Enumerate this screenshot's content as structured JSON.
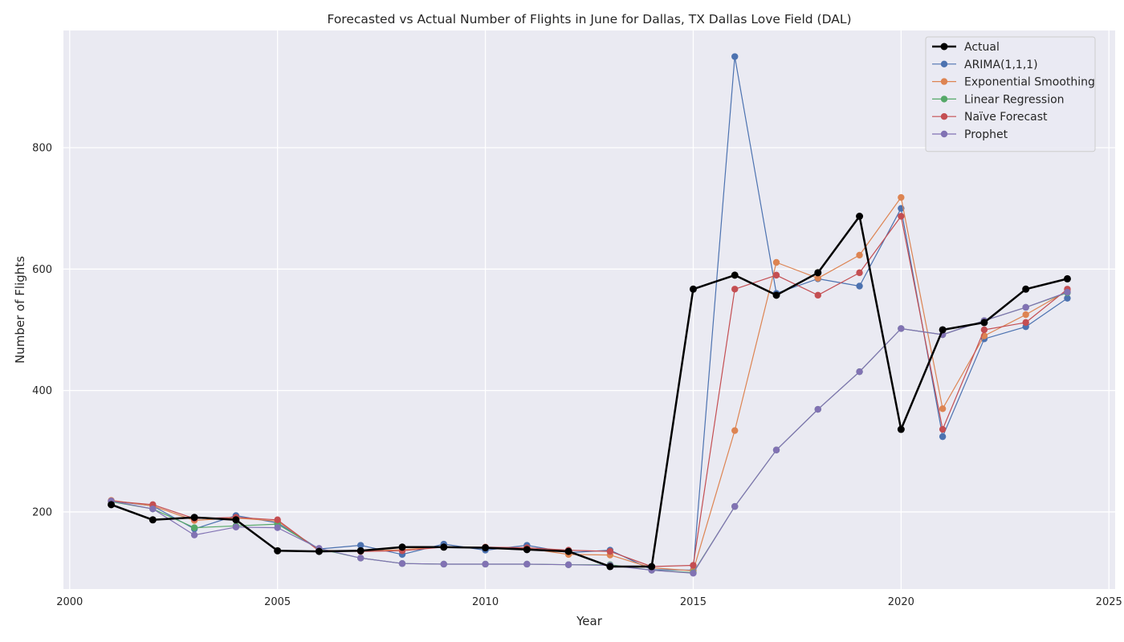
{
  "chart_data": {
    "type": "line",
    "title": "Forecasted vs Actual Number of Flights in June for Dallas, TX Dallas Love Field (DAL)",
    "xlabel": "Year",
    "ylabel": "Number of Flights",
    "xlim": [
      1999.85,
      2025.15
    ],
    "ylim": [
      73,
      993
    ],
    "x_ticks": [
      2000,
      2005,
      2010,
      2015,
      2020,
      2025
    ],
    "y_ticks": [
      200,
      400,
      600,
      800
    ],
    "grid": true,
    "legend_position": "top-right",
    "x": [
      2001,
      2002,
      2003,
      2004,
      2005,
      2006,
      2007,
      2008,
      2009,
      2010,
      2011,
      2012,
      2013,
      2014,
      2015,
      2016,
      2017,
      2018,
      2019,
      2020,
      2021,
      2022,
      2023,
      2024
    ],
    "series": [
      {
        "name": "Actual",
        "color": "#000000",
        "values": [
          212,
          187,
          191,
          187,
          136,
          135,
          136,
          142,
          142,
          141,
          138,
          135,
          110,
          110,
          567,
          590,
          557,
          594,
          687,
          336,
          500,
          512,
          567,
          584
        ]
      },
      {
        "name": "ARIMA(1,1,1)",
        "color": "#4c72b0",
        "values": [
          218,
          210,
          172,
          194,
          182,
          139,
          145,
          130,
          147,
          137,
          145,
          133,
          137,
          105,
          104,
          950,
          560,
          584,
          572,
          700,
          324,
          485,
          505,
          552
        ]
      },
      {
        "name": "Exponential Smoothing",
        "color": "#dd8452",
        "values": [
          219,
          210,
          186,
          190,
          185,
          137,
          135,
          138,
          142,
          142,
          140,
          130,
          129,
          108,
          103,
          334,
          611,
          585,
          623,
          718,
          370,
          490,
          525,
          564
        ]
      },
      {
        "name": "Linear Regression",
        "color": "#55a868",
        "values": [
          217,
          205,
          174,
          177,
          180,
          139,
          124,
          115,
          114,
          114,
          114,
          113,
          113,
          104,
          100,
          209,
          302,
          369,
          431,
          502,
          492,
          515,
          537,
          561
        ]
      },
      {
        "name": "Naïve Forecast",
        "color": "#c44e52",
        "values": [
          218,
          212,
          189,
          191,
          187,
          136,
          135,
          136,
          142,
          142,
          141,
          137,
          135,
          110,
          112,
          567,
          590,
          557,
          594,
          687,
          336,
          500,
          512,
          567
        ]
      },
      {
        "name": "Prophet",
        "color": "#8172b3",
        "values": [
          218,
          205,
          162,
          175,
          174,
          140,
          124,
          115,
          114,
          114,
          114,
          113,
          112,
          104,
          99,
          209,
          302,
          369,
          431,
          502,
          492,
          515,
          537,
          562
        ]
      }
    ]
  }
}
